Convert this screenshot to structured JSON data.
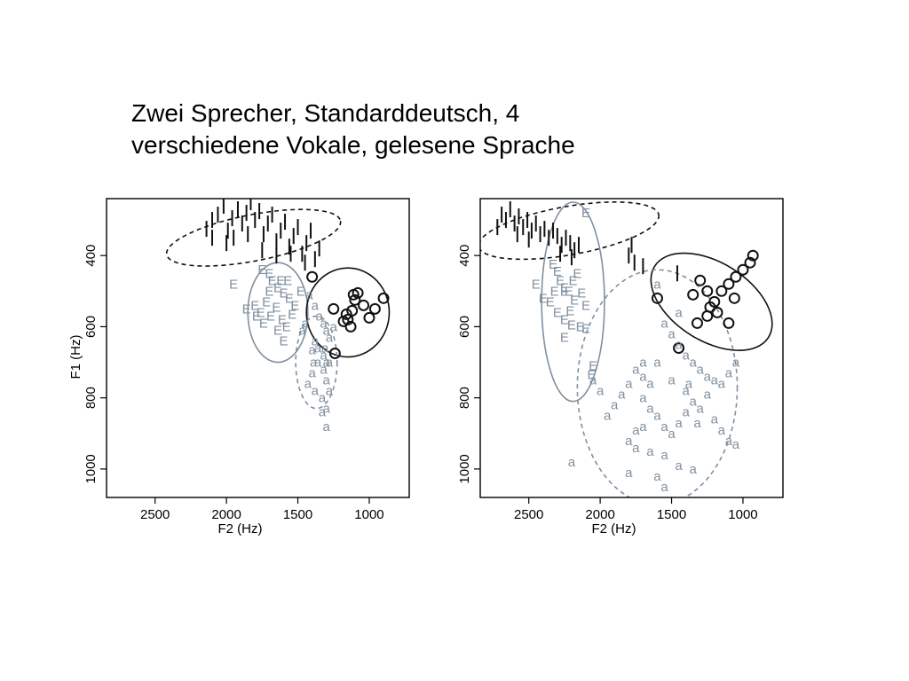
{
  "title_lines": [
    "Zwei Sprecher, Standarddeutsch, 4",
    "verschiedene Vokale, gelesene Sprache"
  ],
  "colors": {
    "I": "#111111",
    "O": "#111111",
    "E": "#8090a0",
    "a": "#8090a0",
    "frame": "#000000"
  },
  "chart_data": [
    {
      "type": "scatter",
      "xlabel": "F2 (Hz)",
      "ylabel": "F1 (Hz)",
      "x_reversed": true,
      "y_reversed": true,
      "xlim": [
        2840,
        720
      ],
      "ylim": [
        240,
        1080
      ],
      "xticks": [
        2500,
        2000,
        1500,
        1000
      ],
      "yticks": [
        400,
        600,
        800,
        1000
      ],
      "ellipses": [
        {
          "vowel": "I",
          "style": "dashed",
          "cx": 1810,
          "cy": 350,
          "rx": 620,
          "ry": 65,
          "angle_deg": 11
        },
        {
          "vowel": "E",
          "style": "solid",
          "cx": 1640,
          "cy": 560,
          "rx": 210,
          "ry": 140,
          "angle_deg": 0
        },
        {
          "vowel": "O",
          "style": "solid",
          "cx": 1150,
          "cy": 560,
          "rx": 290,
          "ry": 125,
          "angle_deg": 0
        },
        {
          "vowel": "a",
          "style": "dashed",
          "cx": 1370,
          "cy": 700,
          "rx": 145,
          "ry": 130,
          "angle_deg": 0
        }
      ],
      "series": [
        {
          "vowel": "I",
          "marker": "bar",
          "points": [
            [
              2140,
              325
            ],
            [
              2100,
              300
            ],
            [
              2060,
              285
            ],
            [
              2020,
              260
            ],
            [
              1990,
              330
            ],
            [
              1960,
              295
            ],
            [
              1920,
              270
            ],
            [
              1890,
              310
            ],
            [
              1860,
              280
            ],
            [
              1830,
              250
            ],
            [
              1800,
              300
            ],
            [
              1770,
              275
            ],
            [
              1740,
              340
            ],
            [
              1710,
              310
            ],
            [
              1680,
              285
            ],
            [
              1650,
              360
            ],
            [
              1620,
              330
            ],
            [
              1590,
              305
            ],
            [
              1560,
              375
            ],
            [
              1530,
              345
            ],
            [
              1500,
              320
            ],
            [
              1470,
              395
            ],
            [
              1440,
              365
            ],
            [
              1410,
              330
            ],
            [
              1380,
              410
            ],
            [
              1350,
              380
            ],
            [
              2100,
              350
            ],
            [
              2000,
              365
            ],
            [
              1950,
              350
            ],
            [
              1850,
              340
            ],
            [
              1750,
              385
            ],
            [
              1650,
              400
            ],
            [
              1550,
              395
            ],
            [
              1450,
              420
            ]
          ]
        },
        {
          "vowel": "E",
          "marker": "text",
          "points": [
            [
              1750,
              440
            ],
            [
              1700,
              450
            ],
            [
              1680,
              470
            ],
            [
              1640,
              490
            ],
            [
              1600,
              505
            ],
            [
              1560,
              520
            ],
            [
              1520,
              540
            ],
            [
              1480,
              500
            ],
            [
              1720,
              530
            ],
            [
              1800,
              540
            ],
            [
              1760,
              560
            ],
            [
              1690,
              570
            ],
            [
              1650,
              545
            ],
            [
              1610,
              580
            ],
            [
              1580,
              600
            ],
            [
              1540,
              565
            ],
            [
              1640,
              610
            ],
            [
              1700,
              500
            ],
            [
              1620,
              470
            ],
            [
              1570,
              470
            ],
            [
              1600,
              640
            ],
            [
              1740,
              590
            ],
            [
              1860,
              550
            ],
            [
              1950,
              480
            ],
            [
              1790,
              570
            ]
          ]
        },
        {
          "vowel": "O",
          "marker": "circle",
          "points": [
            [
              1400,
              460
            ],
            [
              1250,
              550
            ],
            [
              1150,
              580
            ],
            [
              1120,
              555
            ],
            [
              1100,
              525
            ],
            [
              1080,
              505
            ],
            [
              1040,
              540
            ],
            [
              1000,
              575
            ],
            [
              960,
              550
            ],
            [
              900,
              520
            ],
            [
              1130,
              600
            ],
            [
              1180,
              585
            ],
            [
              1240,
              675
            ],
            [
              1110,
              510
            ],
            [
              1160,
              565
            ]
          ]
        },
        {
          "vowel": "a",
          "marker": "text",
          "points": [
            [
              1420,
              510
            ],
            [
              1380,
              540
            ],
            [
              1350,
              570
            ],
            [
              1320,
              590
            ],
            [
              1300,
              610
            ],
            [
              1280,
              630
            ],
            [
              1380,
              640
            ],
            [
              1400,
              665
            ],
            [
              1360,
              700
            ],
            [
              1320,
              720
            ],
            [
              1300,
              750
            ],
            [
              1280,
              780
            ],
            [
              1380,
              780
            ],
            [
              1330,
              800
            ],
            [
              1300,
              830
            ],
            [
              1330,
              840
            ],
            [
              1400,
              730
            ],
            [
              1430,
              760
            ],
            [
              1300,
              880
            ],
            [
              1250,
              600
            ],
            [
              1450,
              590
            ],
            [
              1470,
              610
            ],
            [
              1310,
              660
            ],
            [
              1280,
              700
            ],
            [
              1360,
              660
            ],
            [
              1390,
              700
            ],
            [
              1300,
              700
            ],
            [
              1320,
              680
            ]
          ]
        }
      ]
    },
    {
      "type": "scatter",
      "xlabel": "F2 (Hz)",
      "ylabel": "F1 (Hz)",
      "x_reversed": true,
      "y_reversed": true,
      "xlim": [
        2840,
        720
      ],
      "ylim": [
        240,
        1080
      ],
      "xticks": [
        2500,
        2000,
        1500,
        1000
      ],
      "yticks": [
        400,
        600,
        800,
        1000
      ],
      "ellipses": [
        {
          "vowel": "I",
          "style": "dashed",
          "cx": 2220,
          "cy": 330,
          "rx": 640,
          "ry": 68,
          "angle_deg": 10
        },
        {
          "vowel": "E",
          "style": "solid",
          "cx": 2190,
          "cy": 530,
          "rx": 220,
          "ry": 280,
          "angle_deg": 0
        },
        {
          "vowel": "O",
          "style": "solid",
          "cx": 1220,
          "cy": 530,
          "rx": 470,
          "ry": 110,
          "angle_deg": -32
        },
        {
          "vowel": "a",
          "style": "dashed",
          "cx": 1600,
          "cy": 770,
          "rx": 560,
          "ry": 330,
          "angle_deg": 0
        }
      ],
      "series": [
        {
          "vowel": "I",
          "marker": "bar",
          "points": [
            [
              2690,
              285
            ],
            [
              2660,
              300
            ],
            [
              2630,
              270
            ],
            [
              2600,
              310
            ],
            [
              2570,
              290
            ],
            [
              2540,
              320
            ],
            [
              2510,
              300
            ],
            [
              2480,
              330
            ],
            [
              2450,
              310
            ],
            [
              2420,
              340
            ],
            [
              2390,
              325
            ],
            [
              2360,
              350
            ],
            [
              2330,
              330
            ],
            [
              2300,
              345
            ],
            [
              2270,
              370
            ],
            [
              2240,
              350
            ],
            [
              2210,
              365
            ],
            [
              2180,
              385
            ],
            [
              2150,
              370
            ],
            [
              2720,
              320
            ],
            [
              2580,
              340
            ],
            [
              2500,
              355
            ],
            [
              2280,
              395
            ],
            [
              2200,
              405
            ],
            [
              1800,
              400
            ],
            [
              1760,
              420
            ],
            [
              1700,
              430
            ],
            [
              1460,
              450
            ],
            [
              1780,
              370
            ]
          ]
        },
        {
          "vowel": "E",
          "marker": "text",
          "points": [
            [
              2100,
              280
            ],
            [
              2330,
              425
            ],
            [
              2300,
              445
            ],
            [
              2280,
              470
            ],
            [
              2250,
              490
            ],
            [
              2220,
              500
            ],
            [
              2190,
              470
            ],
            [
              2160,
              450
            ],
            [
              2130,
              505
            ],
            [
              2100,
              540
            ],
            [
              2350,
              530
            ],
            [
              2300,
              560
            ],
            [
              2250,
              580
            ],
            [
              2200,
              595
            ],
            [
              2140,
              600
            ],
            [
              2100,
              605
            ],
            [
              2400,
              520
            ],
            [
              2450,
              480
            ],
            [
              2250,
              630
            ],
            [
              2050,
              710
            ],
            [
              2060,
              735
            ],
            [
              2250,
              500
            ],
            [
              2180,
              525
            ],
            [
              2320,
              500
            ],
            [
              2210,
              555
            ]
          ]
        },
        {
          "vowel": "O",
          "marker": "circle",
          "points": [
            [
              1600,
              520
            ],
            [
              1350,
              510
            ],
            [
              1300,
              470
            ],
            [
              1250,
              500
            ],
            [
              1200,
              530
            ],
            [
              1150,
              500
            ],
            [
              1100,
              480
            ],
            [
              1050,
              460
            ],
            [
              1000,
              440
            ],
            [
              950,
              420
            ],
            [
              930,
              400
            ],
            [
              1250,
              570
            ],
            [
              1320,
              590
            ],
            [
              1450,
              660
            ],
            [
              1100,
              590
            ],
            [
              1230,
              545
            ],
            [
              1180,
              560
            ],
            [
              1060,
              520
            ]
          ]
        },
        {
          "vowel": "a",
          "marker": "text",
          "points": [
            [
              1600,
              480
            ],
            [
              1550,
              590
            ],
            [
              1500,
              620
            ],
            [
              1450,
              650
            ],
            [
              1400,
              680
            ],
            [
              1350,
              700
            ],
            [
              1300,
              720
            ],
            [
              1250,
              740
            ],
            [
              1200,
              750
            ],
            [
              1150,
              760
            ],
            [
              1100,
              730
            ],
            [
              1050,
              700
            ],
            [
              1700,
              700
            ],
            [
              1750,
              720
            ],
            [
              1800,
              760
            ],
            [
              1850,
              790
            ],
            [
              1900,
              820
            ],
            [
              1950,
              850
            ],
            [
              2000,
              780
            ],
            [
              2050,
              750
            ],
            [
              1650,
              760
            ],
            [
              1700,
              800
            ],
            [
              1650,
              830
            ],
            [
              1600,
              850
            ],
            [
              1550,
              880
            ],
            [
              1500,
              900
            ],
            [
              1450,
              870
            ],
            [
              1400,
              840
            ],
            [
              1350,
              810
            ],
            [
              1300,
              830
            ],
            [
              1200,
              860
            ],
            [
              1150,
              890
            ],
            [
              1100,
              920
            ],
            [
              1050,
              930
            ],
            [
              1700,
              880
            ],
            [
              1750,
              890
            ],
            [
              1800,
              920
            ],
            [
              1750,
              940
            ],
            [
              1650,
              950
            ],
            [
              1550,
              960
            ],
            [
              1450,
              990
            ],
            [
              1350,
              1000
            ],
            [
              2200,
              980
            ],
            [
              1800,
              1010
            ],
            [
              1600,
              1020
            ],
            [
              1550,
              1050
            ],
            [
              1700,
              740
            ],
            [
              1600,
              700
            ],
            [
              1500,
              750
            ],
            [
              1400,
              780
            ],
            [
              1250,
              790
            ],
            [
              1450,
              560
            ],
            [
              1380,
              760
            ],
            [
              1320,
              870
            ]
          ]
        }
      ]
    }
  ]
}
